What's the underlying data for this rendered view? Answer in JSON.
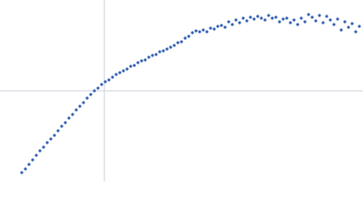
{
  "chart_data": {
    "type": "scatter",
    "color": "#3a66b5",
    "xlim": [
      -115,
      285
    ],
    "ylim": [
      -100,
      100
    ],
    "x": [
      -91,
      -87,
      -83,
      -79,
      -75,
      -71,
      -67,
      -63,
      -59,
      -55,
      -51,
      -47,
      -43,
      -39,
      -35,
      -31,
      -27,
      -23,
      -19,
      -15,
      -11,
      -7,
      -3,
      1,
      5,
      9,
      13,
      17,
      21,
      25,
      29,
      33,
      37,
      41,
      45,
      49,
      53,
      57,
      61,
      65,
      69,
      73,
      77,
      81,
      85,
      89,
      93,
      97,
      101,
      105,
      109,
      113,
      117,
      121,
      125,
      129,
      133,
      137,
      141,
      145,
      149,
      153,
      157,
      161,
      165,
      169,
      173,
      177,
      181,
      185,
      189,
      193,
      197,
      201,
      205,
      209,
      213,
      217,
      221,
      225,
      229,
      233,
      237,
      241,
      245,
      249,
      253,
      257,
      261,
      265,
      269,
      273,
      277,
      281
    ],
    "values": [
      -90,
      -86,
      -81,
      -76,
      -71,
      -66,
      -62,
      -57,
      -53,
      -49,
      -44,
      -39,
      -35,
      -30,
      -26,
      -21,
      -17,
      -13,
      -8,
      -4,
      0,
      3,
      7,
      10,
      12,
      15,
      18,
      20,
      22,
      24,
      27,
      28,
      31,
      33,
      34,
      37,
      39,
      40,
      43,
      44,
      46,
      48,
      50,
      53,
      54,
      58,
      60,
      64,
      66,
      65,
      67,
      65,
      69,
      68,
      71,
      72,
      70,
      76,
      73,
      78,
      75,
      80,
      77,
      81,
      79,
      82,
      80,
      78,
      83,
      80,
      81,
      76,
      79,
      80,
      75,
      78,
      73,
      80,
      76,
      84,
      81,
      77,
      83,
      75,
      82,
      78,
      73,
      79,
      67,
      76,
      70,
      74,
      65,
      71
    ]
  }
}
